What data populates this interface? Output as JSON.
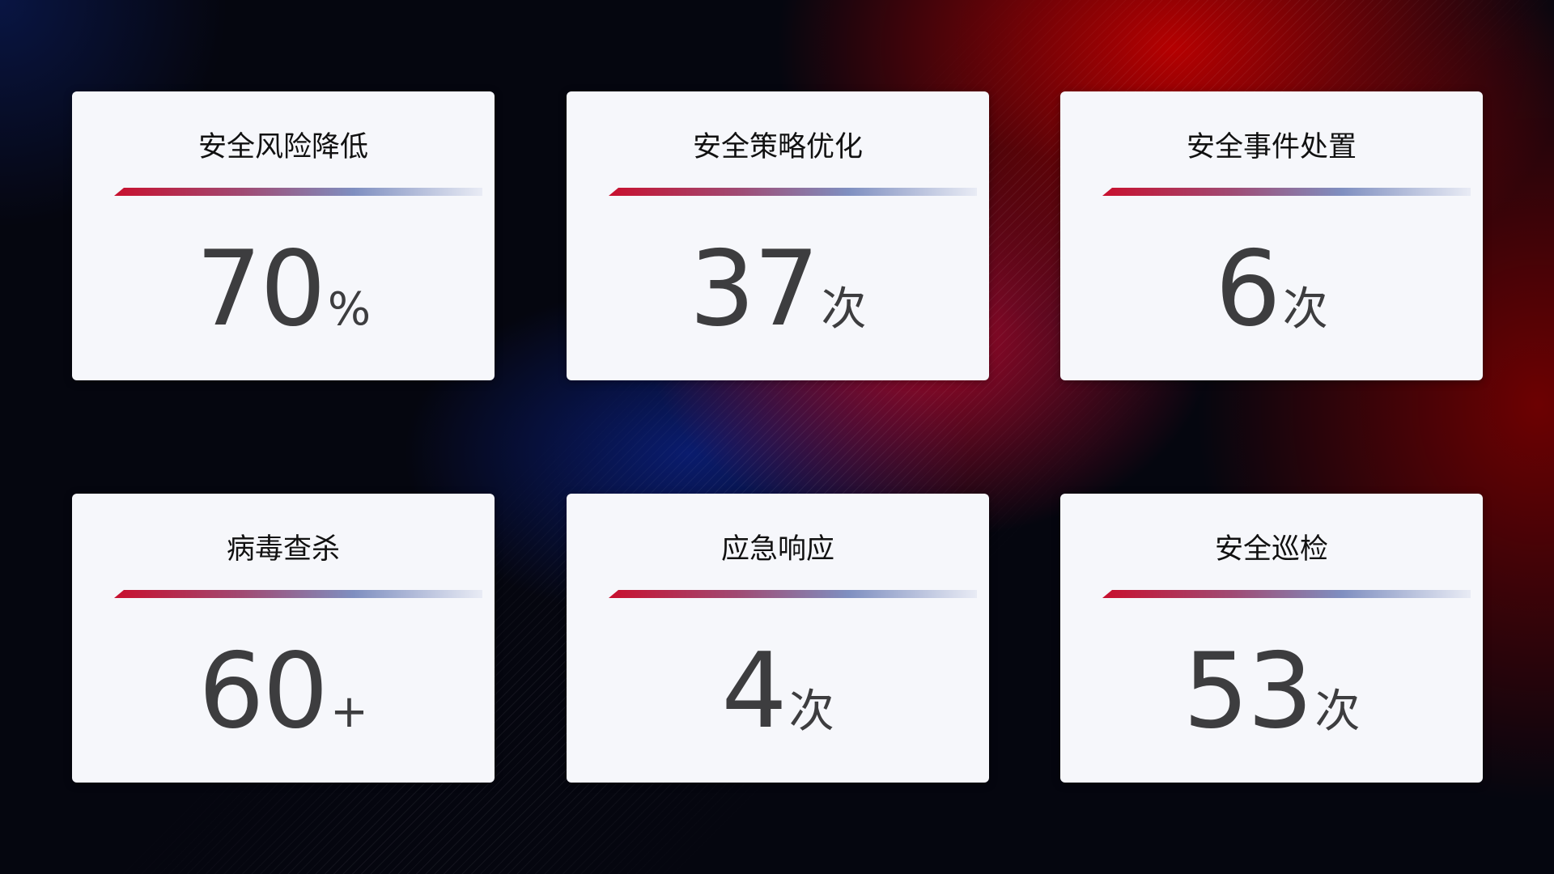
{
  "cards": [
    {
      "title": "安全风险降低",
      "value": "70",
      "unit": "%"
    },
    {
      "title": "安全策略优化",
      "value": "37",
      "unit": "次"
    },
    {
      "title": "安全事件处置",
      "value": "6",
      "unit": "次"
    },
    {
      "title": "病毒查杀",
      "value": "60",
      "unit": "+"
    },
    {
      "title": "应急响应",
      "value": "4",
      "unit": "次"
    },
    {
      "title": "安全巡检",
      "value": "53",
      "unit": "次"
    }
  ],
  "colors": {
    "accent_red": "#c8102e",
    "accent_blue": "#7f8fc0",
    "card_bg": "#f6f7fb",
    "value_text": "#3d3d3f"
  }
}
